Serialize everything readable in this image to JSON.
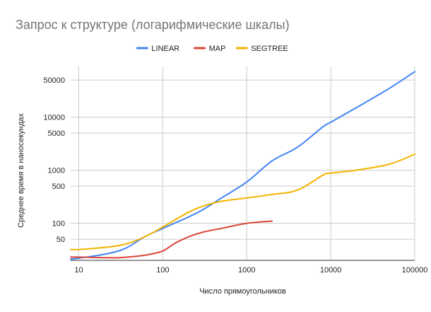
{
  "chart_data": {
    "type": "line",
    "title": "Запрос к структуре (логарифмические шкалы)",
    "xlabel": "Число прямоугольников",
    "ylabel": "Среднее время в наносекундах",
    "x_scale": "log",
    "y_scale": "log",
    "xlim": [
      8,
      100000
    ],
    "ylim": [
      20,
      90000
    ],
    "grid": true,
    "legend_position": "top",
    "x_ticks": [
      {
        "value": 10,
        "label": "10"
      },
      {
        "value": 100,
        "label": "100"
      },
      {
        "value": 1000,
        "label": "1000"
      },
      {
        "value": 10000,
        "label": "10000"
      },
      {
        "value": 100000,
        "label": "100000"
      }
    ],
    "y_ticks": [
      {
        "value": 50,
        "label": "50"
      },
      {
        "value": 100,
        "label": "100"
      },
      {
        "value": 500,
        "label": "500"
      },
      {
        "value": 1000,
        "label": "1000"
      },
      {
        "value": 5000,
        "label": "5000"
      },
      {
        "value": 10000,
        "label": "10000"
      },
      {
        "value": 50000,
        "label": "50000"
      }
    ],
    "series": [
      {
        "name": "LINEAR",
        "color": "#4285f4",
        "points": [
          [
            8,
            21
          ],
          [
            10,
            22
          ],
          [
            20,
            26
          ],
          [
            35,
            33
          ],
          [
            60,
            55
          ],
          [
            100,
            80
          ],
          [
            200,
            130
          ],
          [
            300,
            180
          ],
          [
            500,
            300
          ],
          [
            1000,
            600
          ],
          [
            2000,
            1500
          ],
          [
            4000,
            2700
          ],
          [
            8000,
            6500
          ],
          [
            10000,
            8000
          ],
          [
            20000,
            15000
          ],
          [
            50000,
            35000
          ],
          [
            100000,
            72000
          ]
        ]
      },
      {
        "name": "MAP",
        "color": "#db4437",
        "points": [
          [
            8,
            23
          ],
          [
            10,
            23
          ],
          [
            20,
            22.5
          ],
          [
            30,
            22.5
          ],
          [
            50,
            24
          ],
          [
            70,
            26
          ],
          [
            100,
            30
          ],
          [
            140,
            42
          ],
          [
            200,
            55
          ],
          [
            300,
            68
          ],
          [
            500,
            80
          ],
          [
            1000,
            100
          ],
          [
            2000,
            110
          ]
        ]
      },
      {
        "name": "SEGTREE",
        "color": "#f4b400",
        "points": [
          [
            8,
            32
          ],
          [
            10,
            32
          ],
          [
            20,
            35
          ],
          [
            35,
            40
          ],
          [
            60,
            55
          ],
          [
            100,
            85
          ],
          [
            200,
            160
          ],
          [
            300,
            210
          ],
          [
            500,
            260
          ],
          [
            1000,
            300
          ],
          [
            2000,
            350
          ],
          [
            4000,
            420
          ],
          [
            8000,
            800
          ],
          [
            10000,
            880
          ],
          [
            20000,
            1000
          ],
          [
            50000,
            1300
          ],
          [
            100000,
            2000
          ]
        ]
      }
    ]
  }
}
